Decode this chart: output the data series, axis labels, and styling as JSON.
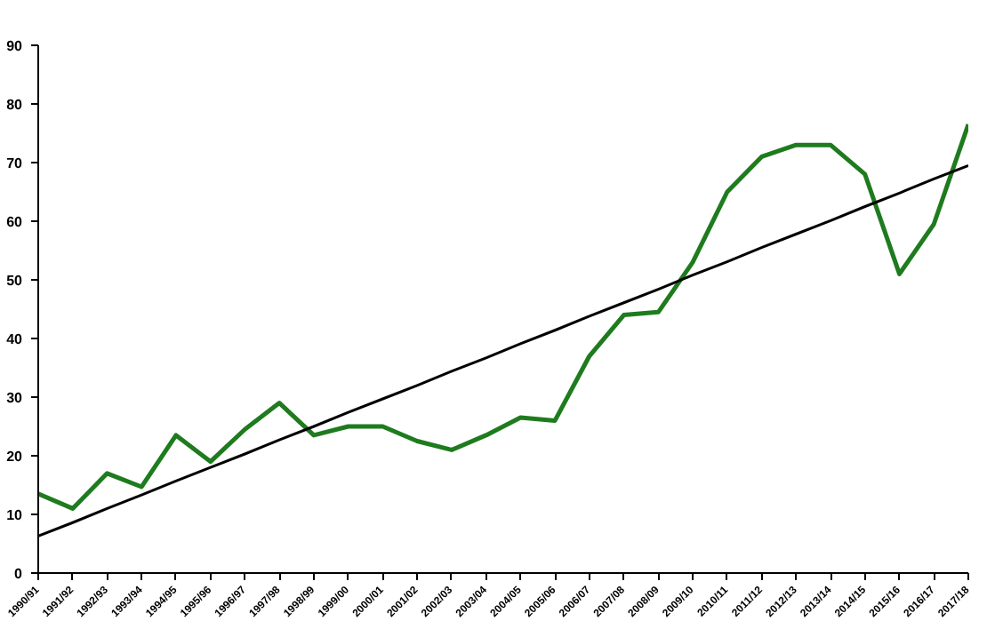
{
  "chart_data": {
    "type": "line",
    "categories": [
      "1990/91",
      "1991/92",
      "1992/93",
      "1993/94",
      "1994/95",
      "1995/96",
      "1996/97",
      "1997/98",
      "1998/99",
      "1999/00",
      "2000/01",
      "2001/02",
      "2002/03",
      "2003/04",
      "2004/05",
      "2005/06",
      "2006/07",
      "2007/08",
      "2008/09",
      "2009/10",
      "2010/11",
      "2011/12",
      "2012/13",
      "2013/14",
      "2014/15",
      "2015/16",
      "2016/17",
      "2017/18"
    ],
    "series": [
      {
        "color": "#1e7b1e",
        "values": [
          13.5,
          11,
          17,
          14.7,
          23.5,
          19,
          24.5,
          29,
          23.5,
          25,
          25,
          22.5,
          21,
          23.5,
          26.5,
          26,
          37,
          44,
          44.5,
          53,
          65,
          71,
          73,
          73,
          68,
          51,
          59.5,
          76.5
        ]
      },
      {
        "color": "#000000",
        "values": [
          6.3,
          8.6,
          11.0,
          13.3,
          15.7,
          18.0,
          20.3,
          22.7,
          25.0,
          27.4,
          29.7,
          32.0,
          34.4,
          36.7,
          39.1,
          41.4,
          43.8,
          46.1,
          48.4,
          50.8,
          53.1,
          55.5,
          57.8,
          60.1,
          62.5,
          64.8,
          67.2,
          69.5
        ]
      }
    ],
    "ylim": [
      0,
      90
    ],
    "yticks": [
      0,
      10,
      20,
      30,
      40,
      50,
      60,
      70,
      80,
      90
    ],
    "grid": false
  }
}
